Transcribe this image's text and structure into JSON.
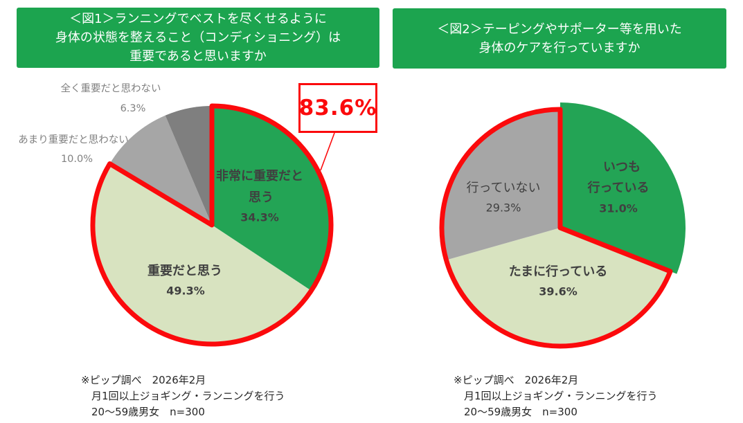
{
  "colors": {
    "red": "#FB0A0C",
    "title_bg": "#1CA44F",
    "title_text": "#FFFFFF",
    "green": "#23A455",
    "light_green": "#D8E3C0",
    "gray": "#A6A6A6",
    "dark_gray": "#7F7F7F",
    "label_dark": "#404040",
    "label_muted": "#808080"
  },
  "figure1": {
    "title_lines": [
      "＜図1＞ランニングでベストを尽くせるように",
      "身体の状態を整えること（コンディショニング）は",
      "重要であると思いますか"
    ],
    "footnote_lines": [
      "※ピップ調べ　2026年2月",
      "月1回以上ジョギング・ランニングを行う",
      "20〜59歳男女　n=300"
    ]
  },
  "figure2": {
    "title_lines": [
      "＜図2＞テーピングやサポーター等を用いた",
      "身体のケアを行っていますか"
    ],
    "footnote_lines": [
      "※ピップ調べ　2026年2月",
      "月1回以上ジョギング・ランニングを行う",
      "20〜59歳男女　n=300"
    ]
  },
  "chart_data": [
    {
      "type": "pie",
      "title": "＜図1＞ランニングでベストを尽くせるように身体の状態を整えること（コンディショニング）は重要であると思いますか",
      "legend": "none",
      "start_angle_deg": 0,
      "direction": "clockwise",
      "slices": [
        {
          "label": "非常に重要だと思う",
          "label_lines": [
            "非常に重要だと",
            "思う"
          ],
          "value": 34.3,
          "pct_text": "34.3%",
          "color": "#23A455",
          "text_bold": true
        },
        {
          "label": "重要だと思う",
          "label_lines": [
            "重要だと思う"
          ],
          "value": 49.3,
          "pct_text": "49.3%",
          "color": "#D8E3C0",
          "text_bold": true
        },
        {
          "label": "あまり重要だと思わない",
          "label_lines": [
            "あまり重要だと思わない"
          ],
          "value": 10.0,
          "pct_text": "10.0%",
          "color": "#A6A6A6",
          "text_bold": false
        },
        {
          "label": "全く重要だと思わない",
          "label_lines": [
            "全く重要だと思わない"
          ],
          "value": 6.3,
          "pct_text": "6.3%",
          "color": "#7F7F7F",
          "text_bold": false
        }
      ],
      "highlight": {
        "text": "83.6%",
        "covers": [
          "非常に重要だと思う",
          "重要だと思う"
        ],
        "outline_color": "#FB0A0C"
      }
    },
    {
      "type": "pie",
      "title": "＜図2＞テーピングやサポーター等を用いた身体のケアを行っていますか",
      "legend": "none",
      "start_angle_deg": 0,
      "direction": "clockwise",
      "slices": [
        {
          "label": "いつも行っている",
          "label_lines": [
            "いつも",
            "行っている"
          ],
          "value": 31.0,
          "pct_text": "31.0%",
          "color": "#23A455",
          "text_bold": true,
          "emphasized": true
        },
        {
          "label": "たまに行っている",
          "label_lines": [
            "たまに行っている"
          ],
          "value": 39.6,
          "pct_text": "39.6%",
          "color": "#D8E3C0",
          "text_bold": true
        },
        {
          "label": "行っていない",
          "label_lines": [
            "行っていない"
          ],
          "value": 29.3,
          "pct_text": "29.3%",
          "color": "#A6A6A6",
          "text_bold": false
        }
      ],
      "highlight": {
        "covers": [
          "たまに行っている",
          "行っていない"
        ],
        "outline_color": "#FB0A0C"
      }
    }
  ]
}
